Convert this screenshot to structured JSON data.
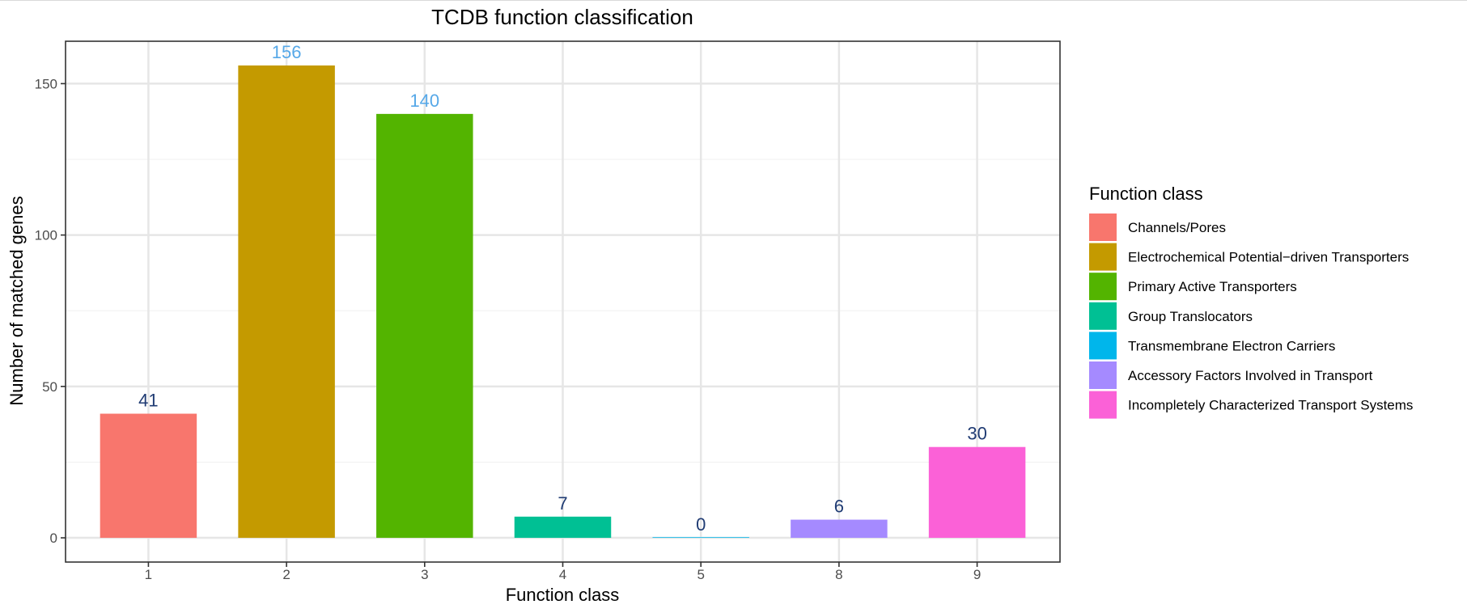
{
  "chart_data": {
    "type": "bar",
    "title": "TCDB function classification",
    "xlabel": "Function class",
    "ylabel": "Number of matched genes",
    "categories": [
      "1",
      "2",
      "3",
      "4",
      "5",
      "8",
      "9"
    ],
    "values": [
      41,
      156,
      140,
      7,
      0,
      6,
      30
    ],
    "data_labels": [
      "41",
      "156",
      "140",
      "7",
      "0",
      "6",
      "30"
    ],
    "colors": [
      "#F8766D",
      "#C49A00",
      "#53B400",
      "#00C094",
      "#00B6EB",
      "#A58AFF",
      "#FB61D7"
    ],
    "label_colors": [
      "#1F3B73",
      "#56A8E8",
      "#56A8E8",
      "#1F3B73",
      "#1F3B73",
      "#1F3B73",
      "#1F3B73"
    ],
    "ylim": [
      -8,
      164
    ],
    "yticks": [
      0,
      50,
      100,
      150
    ],
    "ytick_labels": [
      "0",
      "50",
      "100",
      "150"
    ],
    "grid": true,
    "legend": {
      "title": "Function class",
      "position": "right",
      "items": [
        {
          "label": "Channels/Pores",
          "color": "#F8766D"
        },
        {
          "label": "Electrochemical Potential−driven Transporters",
          "color": "#C49A00"
        },
        {
          "label": "Primary Active Transporters",
          "color": "#53B400"
        },
        {
          "label": "Group Translocators",
          "color": "#00C094"
        },
        {
          "label": "Transmembrane Electron Carriers",
          "color": "#00B6EB"
        },
        {
          "label": "Accessory Factors Involved in Transport",
          "color": "#A58AFF"
        },
        {
          "label": "Incompletely Characterized Transport Systems",
          "color": "#FB61D7"
        }
      ]
    }
  }
}
